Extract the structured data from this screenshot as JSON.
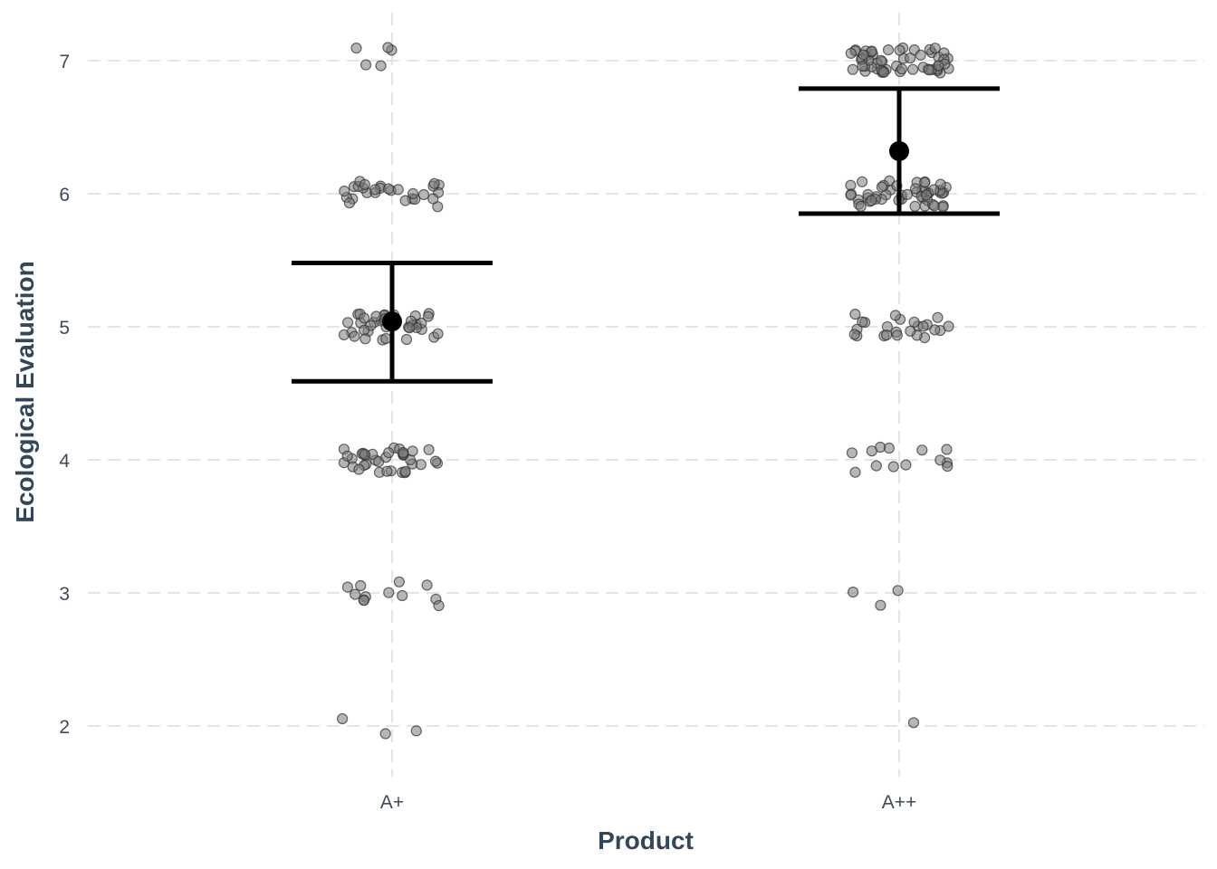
{
  "chart_data": {
    "type": "scatter",
    "xlabel": "Product",
    "ylabel": "Ecological Evaluation",
    "categories": [
      "A+",
      "A++"
    ],
    "y_ticks": [
      2,
      3,
      4,
      5,
      6,
      7
    ],
    "ylim": [
      1.75,
      7.3
    ],
    "grid": true,
    "summary": [
      {
        "category": "A+",
        "mean": 5.04,
        "lower": 4.59,
        "upper": 5.48
      },
      {
        "category": "A++",
        "mean": 6.32,
        "lower": 5.85,
        "upper": 6.79
      }
    ],
    "rating_counts": [
      {
        "category": "A+",
        "counts": {
          "2": 3,
          "3": 12,
          "4": 36,
          "5": 38,
          "6": 28,
          "7": 5
        }
      },
      {
        "category": "A++",
        "counts": {
          "2": 1,
          "3": 3,
          "4": 13,
          "5": 24,
          "6": 50,
          "7": 55
        }
      }
    ]
  }
}
